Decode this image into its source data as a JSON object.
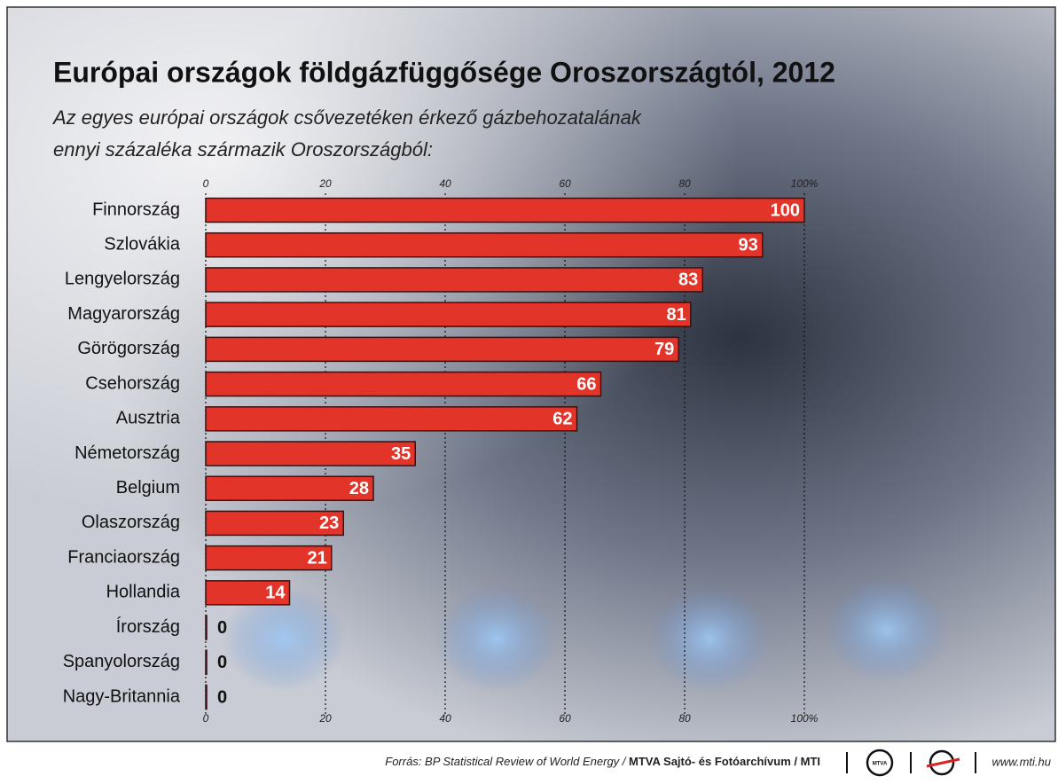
{
  "chart_data": {
    "type": "bar",
    "orientation": "horizontal",
    "title": "Európai országok földgázfüggősége Oroszországtól, 2012",
    "subtitle": [
      "Az egyes európai országok csővezetéken érkező gázbehozatalának",
      "ennyi százaléka származik Oroszországból:"
    ],
    "categories": [
      "Finnország",
      "Szlovákia",
      "Lengyelország",
      "Magyarország",
      "Görögország",
      "Csehország",
      "Ausztria",
      "Németország",
      "Belgium",
      "Olaszország",
      "Franciaország",
      "Hollandia",
      "Írország",
      "Spanyolország",
      "Nagy-Britannia"
    ],
    "values": [
      100,
      93,
      83,
      81,
      79,
      66,
      62,
      35,
      28,
      23,
      21,
      14,
      0,
      0,
      0
    ],
    "color": "#e3342a",
    "xlim": [
      0,
      100
    ],
    "xticks": [
      0,
      20,
      40,
      60,
      80,
      {
        "value": 100,
        "label": "100%"
      }
    ],
    "grid": true,
    "source": [
      "Forrás: BP Statistical Review of World Energy / ",
      "MTVA Sajtó- és Fotóarchívum / MTI"
    ],
    "logo_text": "MTVA",
    "website": "www.mti.hu"
  }
}
